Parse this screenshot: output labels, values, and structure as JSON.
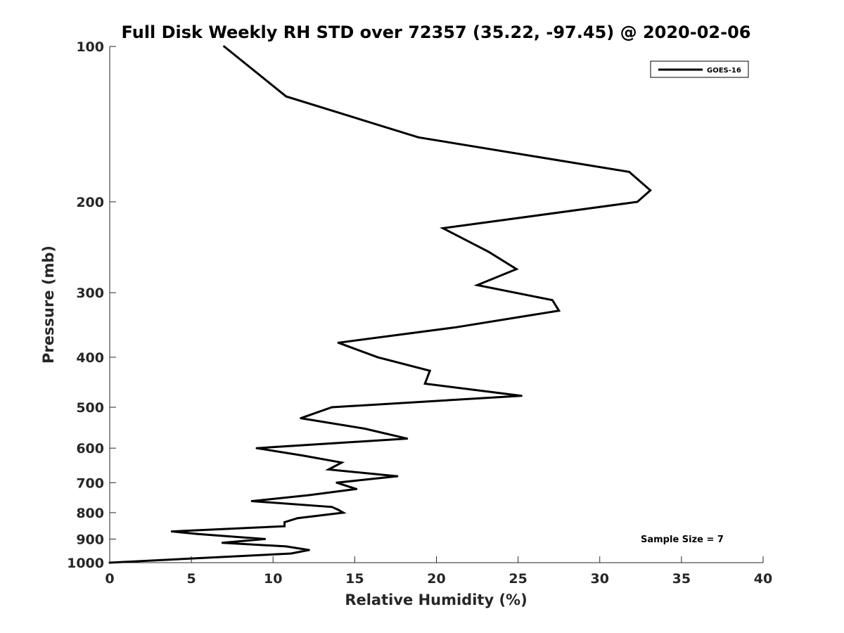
{
  "chart_data": {
    "type": "line",
    "title": "Full Disk Weekly RH STD over 72357 (35.22, -97.45) @ 2020-02-06",
    "xlabel": "Relative Humidity (%)",
    "ylabel": "Pressure (mb)",
    "xlim": [
      0,
      40
    ],
    "ylim": [
      100,
      1000
    ],
    "yscale": "log",
    "y_reversed": true,
    "x_ticks": [
      "0",
      "5",
      "10",
      "15",
      "20",
      "25",
      "30",
      "35",
      "40"
    ],
    "y_ticks": [
      "100",
      "200",
      "300",
      "400",
      "500",
      "600",
      "700",
      "800",
      "900",
      "1000"
    ],
    "legend": {
      "location": "top-right",
      "entries": [
        "GOES-16"
      ]
    },
    "annotation": "Sample Size = 7",
    "series": [
      {
        "name": "GOES-16",
        "color": "#000000",
        "points": [
          [
            7.0,
            100
          ],
          [
            10.8,
            125
          ],
          [
            18.9,
            150
          ],
          [
            31.8,
            175
          ],
          [
            33.1,
            190
          ],
          [
            32.3,
            200
          ],
          [
            20.4,
            225
          ],
          [
            23.2,
            250
          ],
          [
            24.9,
            270
          ],
          [
            22.5,
            290
          ],
          [
            27.1,
            310
          ],
          [
            27.5,
            325
          ],
          [
            21.2,
            350
          ],
          [
            14.0,
            375
          ],
          [
            16.4,
            400
          ],
          [
            19.6,
            425
          ],
          [
            19.3,
            450
          ],
          [
            25.2,
            475
          ],
          [
            13.6,
            500
          ],
          [
            11.7,
            525
          ],
          [
            15.6,
            550
          ],
          [
            18.2,
            575
          ],
          [
            9.0,
            600
          ],
          [
            11.8,
            620
          ],
          [
            14.2,
            640
          ],
          [
            13.4,
            660
          ],
          [
            17.6,
            680
          ],
          [
            13.9,
            700
          ],
          [
            15.1,
            720
          ],
          [
            12.2,
            740
          ],
          [
            8.7,
            760
          ],
          [
            13.6,
            780
          ],
          [
            14.0,
            790
          ],
          [
            14.3,
            800
          ],
          [
            11.5,
            820
          ],
          [
            10.7,
            835
          ],
          [
            10.7,
            850
          ],
          [
            3.8,
            870
          ],
          [
            5.4,
            880
          ],
          [
            9.5,
            900
          ],
          [
            6.9,
            915
          ],
          [
            10.8,
            930
          ],
          [
            12.2,
            945
          ],
          [
            11.1,
            960
          ],
          [
            0.0,
            1000
          ]
        ]
      }
    ]
  }
}
